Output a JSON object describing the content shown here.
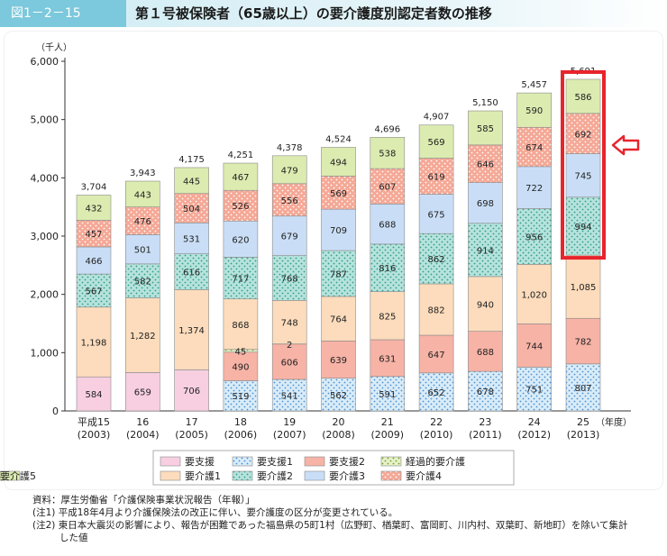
{
  "figure": {
    "tag": "図1－2－15",
    "title": "第１号被保険者（65歳以上）の要介護度別認定者数の推移"
  },
  "notes": {
    "source": "資料：厚生労働省「介護保険事業状況報告（年報）」",
    "note1": "(注1) 平成18年4月より介護保険法の改正に伴い、要介護度の区分が変更されている。",
    "note2a": "(注2) 東日本大震災の影響により、報告が困難であった福島県の5町1村（広野町、楢葉町、富岡町、川内村、双葉町、新地町）を除いて集計",
    "note2b": "した値"
  },
  "colors": {
    "highlight": "#e8242c",
    "arrow": "#e8242c"
  },
  "chart_data": {
    "type": "bar",
    "stacked": true,
    "ylabel": "（千人）",
    "xlabel": "（年度）",
    "ylim": [
      0,
      6000
    ],
    "yticks": [
      0,
      1000,
      2000,
      3000,
      4000,
      5000,
      6000
    ],
    "ytick_labels": [
      "0",
      "1,000",
      "2,000",
      "3,000",
      "4,000",
      "5,000",
      "6,000"
    ],
    "categories": [
      {
        "era": "平成15",
        "year": "(2003)"
      },
      {
        "era": "16",
        "year": "(2004)"
      },
      {
        "era": "17",
        "year": "(2005)"
      },
      {
        "era": "18",
        "year": "(2006)"
      },
      {
        "era": "19",
        "year": "(2007)"
      },
      {
        "era": "20",
        "year": "(2008)"
      },
      {
        "era": "21",
        "year": "(2009)"
      },
      {
        "era": "22",
        "year": "(2010)"
      },
      {
        "era": "23",
        "year": "(2011)"
      },
      {
        "era": "24",
        "year": "(2012)"
      },
      {
        "era": "25",
        "year": "(2013)"
      }
    ],
    "totals": [
      3704,
      3943,
      4175,
      4251,
      4378,
      4524,
      4696,
      4907,
      5150,
      5457,
      5691
    ],
    "total_labels": [
      "3,704",
      "3,943",
      "4,175",
      "4,251",
      "4,378",
      "4,524",
      "4,696",
      "4,907",
      "5,150",
      "5,457",
      "5,691"
    ],
    "series": [
      {
        "name": "要支援",
        "color": "#f7cfe1",
        "pattern": "none",
        "values": [
          584,
          659,
          706,
          null,
          null,
          null,
          null,
          null,
          null,
          null,
          null
        ]
      },
      {
        "name": "要支援1",
        "color": "#d9ecf8",
        "pattern": "dots-blue",
        "values": [
          null,
          null,
          null,
          519,
          541,
          562,
          591,
          652,
          678,
          751,
          807
        ]
      },
      {
        "name": "要支援2",
        "color": "#f7b3a6",
        "pattern": "none",
        "values": [
          null,
          null,
          null,
          490,
          606,
          639,
          631,
          647,
          688,
          744,
          782
        ]
      },
      {
        "name": "経過的要介護",
        "color": "#e6f1c9",
        "pattern": "dots-green",
        "values": [
          null,
          null,
          null,
          45,
          2,
          null,
          null,
          null,
          null,
          null,
          null
        ]
      },
      {
        "name": "要介護1",
        "color": "#fcdcbc",
        "pattern": "none",
        "values": [
          1198,
          1282,
          1374,
          868,
          748,
          764,
          825,
          882,
          940,
          1020,
          1085
        ]
      },
      {
        "name": "要介護2",
        "color": "#b6e3dc",
        "pattern": "dots-teal",
        "values": [
          567,
          582,
          616,
          717,
          768,
          787,
          816,
          862,
          914,
          956,
          994
        ]
      },
      {
        "name": "要介護3",
        "color": "#c9def6",
        "pattern": "none",
        "values": [
          466,
          501,
          531,
          620,
          679,
          709,
          688,
          675,
          698,
          722,
          745
        ]
      },
      {
        "name": "要介護4",
        "color": "#f5a896",
        "pattern": "dots-white",
        "values": [
          457,
          476,
          504,
          526,
          556,
          569,
          607,
          619,
          646,
          674,
          692
        ]
      },
      {
        "name": "要介護5",
        "color": "#dcebb0",
        "pattern": "none",
        "values": [
          432,
          443,
          445,
          467,
          479,
          494,
          538,
          569,
          585,
          590,
          586
        ]
      }
    ],
    "value_labels": [
      [
        "584",
        "659",
        "706",
        "",
        "",
        "",
        "",
        "",
        "",
        "",
        ""
      ],
      [
        "",
        "",
        "",
        "519",
        "541",
        "562",
        "591",
        "652",
        "678",
        "751",
        "807"
      ],
      [
        "",
        "",
        "",
        "490",
        "606",
        "639",
        "631",
        "647",
        "688",
        "744",
        "782"
      ],
      [
        "",
        "",
        "",
        "45",
        "2",
        "",
        "",
        "",
        "",
        "",
        ""
      ],
      [
        "1,198",
        "1,282",
        "1,374",
        "868",
        "748",
        "764",
        "825",
        "882",
        "940",
        "1,020",
        "1,085"
      ],
      [
        "567",
        "582",
        "616",
        "717",
        "768",
        "787",
        "816",
        "862",
        "914",
        "956",
        "994"
      ],
      [
        "466",
        "501",
        "531",
        "620",
        "679",
        "709",
        "688",
        "675",
        "698",
        "722",
        "745"
      ],
      [
        "457",
        "476",
        "504",
        "526",
        "556",
        "569",
        "607",
        "619",
        "646",
        "674",
        "692"
      ],
      [
        "432",
        "443",
        "445",
        "467",
        "479",
        "494",
        "538",
        "569",
        "585",
        "590",
        "586"
      ]
    ],
    "highlight": {
      "category_index": 10,
      "series": [
        "要介護2",
        "要介護3",
        "要介護4",
        "要介護5"
      ]
    },
    "grid": false,
    "legend_position": "bottom"
  }
}
